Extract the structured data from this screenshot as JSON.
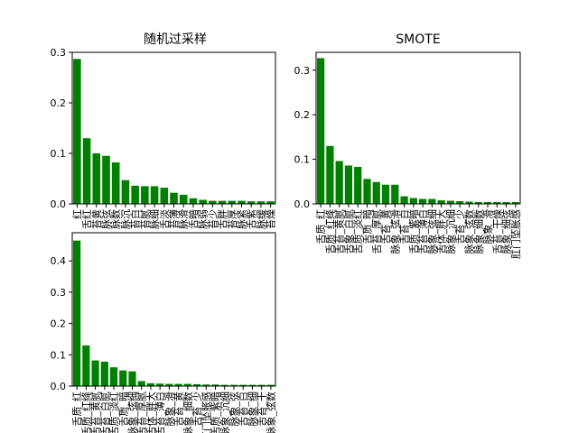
{
  "figure": {
    "background": "#ffffff",
    "bar_color": "#008000"
  },
  "chart_data": [
    {
      "type": "bar",
      "title": "随机过采样",
      "ylim": [
        0,
        0.3
      ],
      "yticks": [
        "0.0",
        "0.1",
        "0.2",
        "0.3"
      ],
      "categories": [
        "红",
        "舌红",
        "苔黄",
        "脉弦",
        "脉数",
        "脉沉",
        "苔白",
        "苔腻",
        "脉细",
        "舌淡",
        "苔薄",
        "脉滑",
        "舌暗",
        "脉弱",
        "苔少",
        "舌胖",
        "苔厚",
        "脉紧",
        "舌紫",
        "脉缓",
        "苔燥"
      ],
      "values": [
        0.287,
        0.13,
        0.1,
        0.095,
        0.082,
        0.047,
        0.036,
        0.035,
        0.035,
        0.032,
        0.022,
        0.018,
        0.011,
        0.008,
        0.006,
        0.006,
        0.006,
        0.006,
        0.005,
        0.005,
        0.005
      ]
    },
    {
      "type": "bar",
      "title": "SMOTE",
      "ylim": [
        0,
        0.34
      ],
      "yticks": [
        "0.0",
        "0.1",
        "0.2",
        "0.3"
      ],
      "categories": [
        "舌质_红",
        "舌质_红绛",
        "舌苔_黄腻",
        "舌象_白腻",
        "舌质_淡红",
        "舌质_暗",
        "舌苔_厚腻",
        "舌苔_黄",
        "脉象_弦滑",
        "舌苔_白",
        "舌质_紫暗",
        "舌苔_薄白",
        "脉象_弦细",
        "舌体_胖大",
        "脉象_沉细",
        "舌苔_少",
        "脉象_弦数",
        "脉象_细数",
        "脉象_滑",
        "舌苔_干燥",
        "脉象_细弦",
        "肛门坠胀感"
      ],
      "values": [
        0.327,
        0.13,
        0.096,
        0.086,
        0.083,
        0.056,
        0.049,
        0.043,
        0.043,
        0.017,
        0.013,
        0.011,
        0.011,
        0.008,
        0.007,
        0.006,
        0.005,
        0.004,
        0.004,
        0.004,
        0.004,
        0.004
      ]
    },
    {
      "type": "bar",
      "title": "",
      "ylim": [
        0,
        0.49
      ],
      "yticks": [
        "0.0",
        "0.1",
        "0.2",
        "0.3",
        "0.4"
      ],
      "categories": [
        "舌质_红",
        "舌质_红绛",
        "舌苔_黄腻",
        "舌苔_白腻",
        "舌质_淡红",
        "舌质_暗",
        "脉象_弦细",
        "舌苔_厚腻",
        "舌体_胖大",
        "舌苔_薄白",
        "脉象_滑",
        "舌苔_黄",
        "脉象_细数",
        "舌苔_少",
        "肛门坠胀感",
        "舌质_紫暗",
        "脉象_沉细",
        "脉象_弦",
        "舌苔_白",
        "脉象_细",
        "舌苔_干",
        "脉象_弦数"
      ],
      "values": [
        0.465,
        0.13,
        0.082,
        0.078,
        0.06,
        0.05,
        0.047,
        0.016,
        0.009,
        0.008,
        0.007,
        0.007,
        0.007,
        0.006,
        0.005,
        0.005,
        0.004,
        0.004,
        0.004,
        0.004,
        0.004,
        0.004
      ]
    }
  ]
}
